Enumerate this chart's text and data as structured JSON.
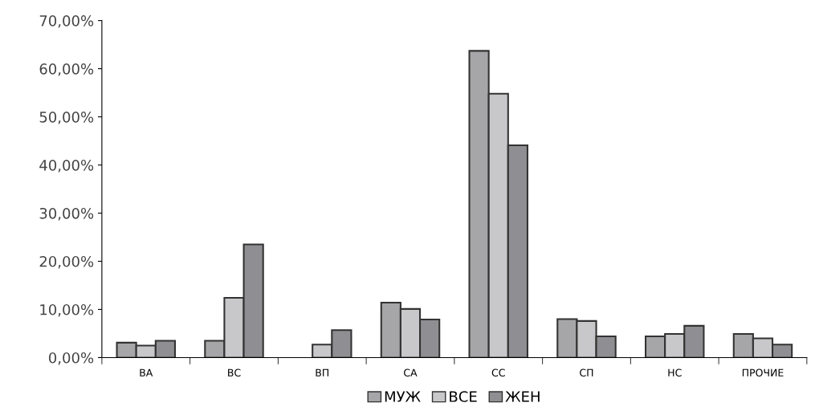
{
  "chart_data": {
    "type": "bar",
    "categories": [
      "ВА",
      "ВС",
      "ВП",
      "СА",
      "СС",
      "СП",
      "НС",
      "ПРОЧИЕ"
    ],
    "series": [
      {
        "name": "МУЖ",
        "color": "#a6a6a8",
        "values": [
          3.1,
          3.5,
          null,
          11.4,
          63.7,
          8.0,
          4.4,
          4.9
        ]
      },
      {
        "name": "ВСЕ",
        "color": "#c8c8ca",
        "values": [
          2.5,
          12.4,
          2.7,
          10.1,
          54.8,
          7.6,
          4.9,
          4.0
        ]
      },
      {
        "name": "ЖЕН",
        "color": "#8f8f93",
        "values": [
          3.5,
          23.5,
          5.7,
          7.9,
          44.1,
          4.4,
          6.6,
          2.7
        ]
      }
    ],
    "ylim": [
      0,
      70
    ],
    "yticks": [
      {
        "value": 0,
        "label": "0,00%"
      },
      {
        "value": 10,
        "label": "10,00%"
      },
      {
        "value": 20,
        "label": "20,00%"
      },
      {
        "value": 30,
        "label": "30,00%"
      },
      {
        "value": 40,
        "label": "40,00%"
      },
      {
        "value": 50,
        "label": "50,00%"
      },
      {
        "value": 60,
        "label": "60,00%"
      },
      {
        "value": 70,
        "label": "70,00%"
      }
    ],
    "grid": false,
    "legend": "bottom"
  }
}
